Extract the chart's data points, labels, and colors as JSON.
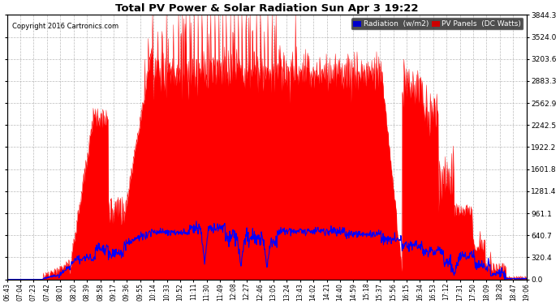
{
  "title": "Total PV Power & Solar Radiation Sun Apr 3 19:22",
  "copyright": "Copyright 2016 Cartronics.com",
  "background_color": "#ffffff",
  "plot_bg_color": "#ffffff",
  "grid_color": "#aaaaaa",
  "pv_color": "#ff0000",
  "radiation_color": "#0000ff",
  "ylabel_right": [
    "0.0",
    "320.4",
    "640.7",
    "961.1",
    "1281.4",
    "1601.8",
    "1922.2",
    "2242.5",
    "2562.9",
    "2883.3",
    "3203.6",
    "3524.0",
    "3844.3"
  ],
  "ytick_values": [
    0.0,
    320.4,
    640.7,
    961.1,
    1281.4,
    1601.8,
    1922.2,
    2242.5,
    2562.9,
    2883.3,
    3203.6,
    3524.0,
    3844.3
  ],
  "xlabels": [
    "06:43",
    "07:04",
    "07:23",
    "07:42",
    "08:01",
    "08:20",
    "08:39",
    "08:58",
    "09:17",
    "09:36",
    "09:55",
    "10:14",
    "10:33",
    "10:52",
    "11:11",
    "11:30",
    "11:49",
    "12:08",
    "12:27",
    "12:46",
    "13:05",
    "13:24",
    "13:43",
    "14:02",
    "14:21",
    "14:40",
    "14:59",
    "15:18",
    "15:37",
    "15:56",
    "16:15",
    "16:34",
    "16:53",
    "17:12",
    "17:31",
    "17:50",
    "18:09",
    "18:28",
    "18:47",
    "19:06"
  ],
  "legend_radiation_label": "Radiation  (w/m2)",
  "legend_pv_label": "PV Panels  (DC Watts)",
  "legend_radiation_bg": "#0000cc",
  "legend_pv_bg": "#cc0000",
  "ymax": 3844.3
}
